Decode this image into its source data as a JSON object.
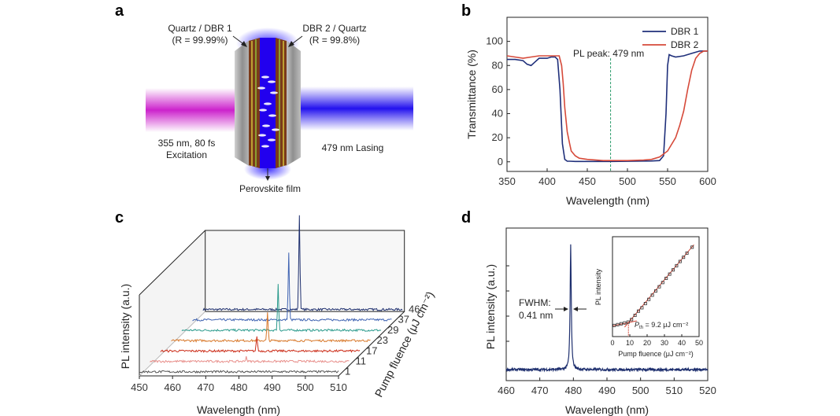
{
  "panel_labels": [
    "a",
    "b",
    "c",
    "d"
  ],
  "panel_a": {
    "left_mirror_label": "Quartz / DBR 1",
    "left_mirror_r": "(R = 99.99%)",
    "right_mirror_label": "DBR 2 / Quartz",
    "right_mirror_r": "(R = 99.8%)",
    "excitation_line1": "355 nm, 80 fs",
    "excitation_line2": "Excitation",
    "lasing_label": "479 nm Lasing",
    "film_label": "Perovskite film",
    "colors": {
      "pump": "#cc22cc",
      "lasing": "#3322ee",
      "film": "#2200ee"
    }
  },
  "chart_data": [
    {
      "panel": "b",
      "type": "line",
      "xlabel": "Wavelength (nm)",
      "ylabel": "Transmittance (%)",
      "xlim": [
        350,
        600
      ],
      "ylim": [
        -8,
        120
      ],
      "xticks": [
        "350",
        "400",
        "450",
        "500",
        "550",
        "600"
      ],
      "yticks": [
        "0",
        "20",
        "40",
        "60",
        "80",
        "100"
      ],
      "legend_position": "top-right",
      "annotation": "PL peak: 479 nm",
      "annotation_x": 479,
      "series": [
        {
          "name": "DBR 1",
          "color": "#1f2f7a",
          "x": [
            350,
            360,
            370,
            375,
            380,
            385,
            390,
            395,
            400,
            405,
            410,
            413,
            416,
            419,
            422,
            425,
            428,
            435,
            450,
            480,
            510,
            530,
            540,
            545,
            548,
            550,
            552,
            555,
            560,
            570,
            580,
            590,
            600
          ],
          "y": [
            85,
            85,
            84,
            81,
            80,
            83,
            86,
            86,
            86,
            87,
            87,
            85,
            60,
            15,
            2,
            0.5,
            0.5,
            0.3,
            0.3,
            0.3,
            0.5,
            0.7,
            1,
            5,
            40,
            80,
            89,
            88,
            87,
            88,
            90,
            92,
            92
          ]
        },
        {
          "name": "DBR 2",
          "color": "#d64a3a",
          "x": [
            350,
            360,
            370,
            380,
            390,
            400,
            410,
            415,
            418,
            420,
            422,
            425,
            428,
            430,
            435,
            440,
            450,
            470,
            480,
            500,
            520,
            530,
            540,
            550,
            560,
            565,
            570,
            575,
            580,
            585,
            590,
            595,
            600
          ],
          "y": [
            88,
            87,
            86,
            87,
            88,
            88,
            88,
            88,
            80,
            65,
            45,
            25,
            15,
            9,
            5,
            3,
            2,
            1,
            1,
            1,
            1.5,
            2,
            4,
            9,
            20,
            30,
            42,
            60,
            76,
            86,
            90,
            92,
            92
          ]
        }
      ]
    },
    {
      "panel": "c",
      "type": "line",
      "xlabel": "Wavelength (nm)",
      "ylabel": "PL intensity (a.u.)",
      "zlabel": "Pump fluence (μJ cm⁻²)",
      "xlim": [
        450,
        510
      ],
      "xticks": [
        "450",
        "460",
        "470",
        "480",
        "490",
        "500",
        "510"
      ],
      "peak_x": 479,
      "series": [
        {
          "name": "1",
          "color": "#555555",
          "peak": 0.0
        },
        {
          "name": "11",
          "color": "#e8908c",
          "peak": 0.08
        },
        {
          "name": "17",
          "color": "#cc2e1a",
          "peak": 0.25
        },
        {
          "name": "23",
          "color": "#d8782a",
          "peak": 0.45
        },
        {
          "name": "29",
          "color": "#2a9a8c",
          "peak": 0.75
        },
        {
          "name": "37",
          "color": "#3f63b2",
          "peak": 1.1
        },
        {
          "name": "46",
          "color": "#1e2f6e",
          "peak": 1.55
        }
      ]
    },
    {
      "panel": "d",
      "type": "line",
      "xlabel": "Wavelength (nm)",
      "ylabel": "PL intensity (a.u.)",
      "xlim": [
        460,
        520
      ],
      "xticks": [
        "460",
        "470",
        "480",
        "490",
        "500",
        "510",
        "520"
      ],
      "peak_x": 479.2,
      "fwhm_label_1": "FWHM:",
      "fwhm_label_2": "0.41 nm",
      "color": "#1e2f6e",
      "inset": {
        "xlabel": "Pump fluence (μJ cm⁻²)",
        "ylabel": "PL intensity",
        "xlim": [
          0,
          50
        ],
        "xticks": [
          "0",
          "10",
          "20",
          "30",
          "40",
          "50"
        ],
        "threshold_label_prefix": "P",
        "threshold_label_sub": "th",
        "threshold_label_suffix": " = 9.2 μJ cm⁻²",
        "threshold_x": 9.2,
        "x": [
          1,
          3,
          5,
          7,
          9,
          11,
          13,
          15,
          17,
          19,
          21,
          23,
          25,
          27,
          29,
          31,
          33,
          35,
          37,
          39,
          41,
          43,
          46
        ],
        "y": [
          0.02,
          0.03,
          0.04,
          0.05,
          0.06,
          0.09,
          0.14,
          0.19,
          0.23,
          0.28,
          0.33,
          0.38,
          0.43,
          0.48,
          0.53,
          0.58,
          0.63,
          0.68,
          0.73,
          0.78,
          0.83,
          0.88,
          0.95
        ]
      }
    }
  ]
}
